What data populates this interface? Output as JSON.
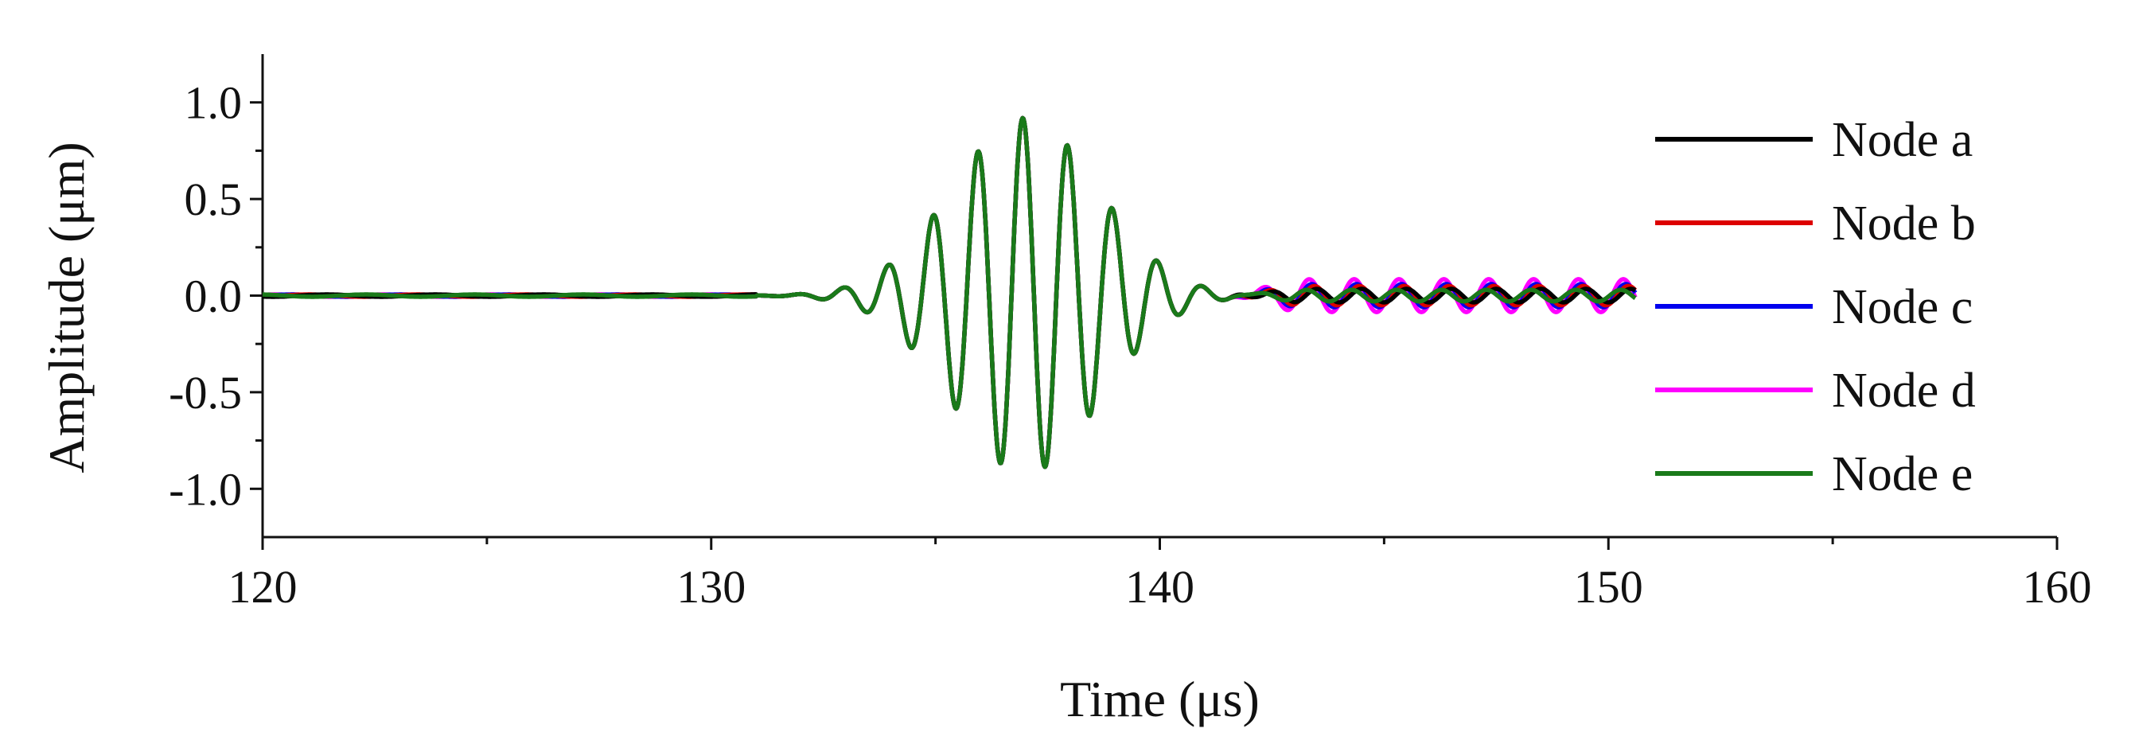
{
  "chart_data": {
    "type": "line",
    "xlabel": "Time (μs)",
    "ylabel": "Amplitude (μm)",
    "xlim": [
      120,
      160
    ],
    "ylim": [
      -1.25,
      1.25
    ],
    "xticks": [
      120,
      130,
      140,
      150,
      160
    ],
    "yticks": [
      1.0,
      0.5,
      0.0,
      -0.5,
      -1.0
    ],
    "xtick_labels": [
      "120",
      "130",
      "140",
      "150",
      "160"
    ],
    "ytick_labels": [
      "1.0",
      "0.5",
      "0.0",
      "-0.5",
      "-1.0"
    ],
    "grid": false,
    "legend": {
      "placement": "right"
    },
    "burst": {
      "center": 137,
      "frequency_mhz": 1.0,
      "peak": 0.92,
      "width_us": 2.3
    },
    "series": [
      {
        "name": "Node a",
        "color": "#000000",
        "x_range": [
          120,
          150.6
        ],
        "tail_amplitude": 0.035
      },
      {
        "name": "Node b",
        "color": "#dd0000",
        "x_range": [
          120,
          150.6
        ],
        "tail_amplitude": 0.05
      },
      {
        "name": "Node c",
        "color": "#0000ee",
        "x_range": [
          120,
          150.6
        ],
        "tail_amplitude": 0.06
      },
      {
        "name": "Node d",
        "color": "#ff00ff",
        "x_range": [
          120,
          150.6
        ],
        "tail_amplitude": 0.085
      },
      {
        "name": "Node e",
        "color": "#1a7a1a",
        "x_range": [
          120,
          150.6
        ],
        "tail_amplitude": 0.03
      }
    ]
  }
}
